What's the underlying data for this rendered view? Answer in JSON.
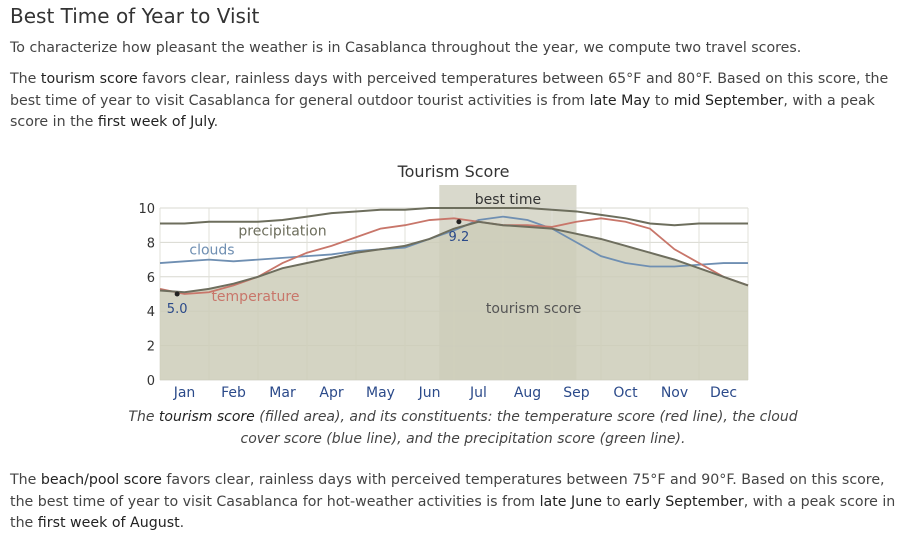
{
  "heading": "Best Time of Year to Visit",
  "intro": "To characterize how pleasant the weather is in Casablanca throughout the year, we compute two travel scores.",
  "tourism_paragraph": {
    "t1": "The ",
    "b1": "tourism score",
    "t2": " favors clear, rainless days with perceived temperatures between 65°F and 80°F. Based on this score, the best time of year to visit Casablanca for general outdoor tourist activities is from ",
    "b2": "late May",
    "t3": " to ",
    "b3": "mid September",
    "t4": ", with a peak score in the ",
    "b4": "first week of July",
    "t5": "."
  },
  "chart_title": "Tourism Score",
  "best_time_label": "best time",
  "caption": {
    "t1": "The ",
    "b1": "tourism score",
    "t2": " (filled area), and its constituents: the temperature score (red line), the cloud cover score (blue line), and the precipitation score (green line)."
  },
  "beach_paragraph": {
    "t1": "The ",
    "b1": "beach/pool score",
    "t2": " favors clear, rainless days with perceived temperatures between 75°F and 90°F. Based on this score, the best time of year to visit Casablanca for hot-weather activities is from ",
    "b2": "late June",
    "t3": " to ",
    "b3": "early September",
    "t4": ", with a peak score in the ",
    "b4": "first week of August",
    "t5": "."
  },
  "colors": {
    "area_fill": "#cdcdb9",
    "best_band": "#b9b9a2",
    "tourism_line": "#6e6e5e",
    "temperature": "#c8766a",
    "clouds": "#6f8fb2",
    "precipitation": "#6d6e5d"
  },
  "chart_data": {
    "type": "area",
    "title": "Tourism Score",
    "months": [
      "Jan",
      "Feb",
      "Mar",
      "Apr",
      "May",
      "Jun",
      "Jul",
      "Aug",
      "Sep",
      "Oct",
      "Nov",
      "Dec"
    ],
    "y_ticks": [
      "0",
      "2",
      "4",
      "6",
      "8",
      "10"
    ],
    "ylim": [
      0,
      10
    ],
    "xlim": [
      0,
      12
    ],
    "best_time": [
      5.7,
      8.5
    ],
    "series_labels": {
      "precipitation": "precipitation",
      "clouds": "clouds",
      "temperature": "temperature",
      "tourism": "tourism score"
    },
    "x": [
      0,
      0.5,
      1,
      1.5,
      2,
      2.5,
      3,
      3.5,
      4,
      4.5,
      5,
      5.5,
      6,
      6.5,
      7,
      7.5,
      8,
      8.5,
      9,
      9.5,
      10,
      10.5,
      11,
      11.5,
      12
    ],
    "tourism": [
      5.2,
      5.1,
      5.3,
      5.6,
      6.0,
      6.5,
      6.8,
      7.1,
      7.4,
      7.6,
      7.8,
      8.2,
      8.8,
      9.2,
      9.0,
      8.9,
      8.8,
      8.5,
      8.2,
      7.8,
      7.4,
      7.0,
      6.5,
      6.0,
      5.5
    ],
    "temperature": [
      5.3,
      5.0,
      5.1,
      5.5,
      6.0,
      6.8,
      7.4,
      7.8,
      8.3,
      8.8,
      9.0,
      9.3,
      9.4,
      9.2,
      9.0,
      9.0,
      8.9,
      9.2,
      9.4,
      9.2,
      8.8,
      7.6,
      6.8,
      6.0,
      5.5
    ],
    "clouds": [
      6.8,
      6.9,
      7.0,
      6.9,
      7.0,
      7.1,
      7.2,
      7.3,
      7.5,
      7.6,
      7.7,
      8.2,
      8.7,
      9.3,
      9.5,
      9.3,
      8.8,
      8.0,
      7.2,
      6.8,
      6.6,
      6.6,
      6.7,
      6.8,
      6.8
    ],
    "precipitation": [
      9.1,
      9.1,
      9.2,
      9.2,
      9.2,
      9.3,
      9.5,
      9.7,
      9.8,
      9.9,
      9.9,
      10,
      10,
      10,
      10,
      10,
      9.9,
      9.8,
      9.6,
      9.4,
      9.1,
      9.0,
      9.1,
      9.1,
      9.1
    ],
    "annotations": [
      {
        "x": 0.35,
        "y": 5.0,
        "label": "5.0"
      },
      {
        "x": 6.1,
        "y": 9.2,
        "label": "9.2"
      }
    ]
  }
}
